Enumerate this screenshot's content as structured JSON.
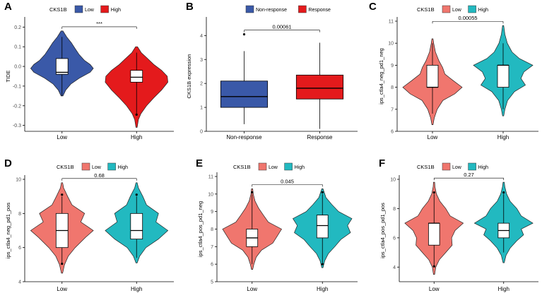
{
  "colors": {
    "low_red_fig_a": "#e41a1c",
    "high_blue_fig_a": "#3a59a8",
    "low_salmon": "#f0766e",
    "high_teal": "#22b9c0",
    "nonresponse_blue": "#3a59a8",
    "response_red": "#e41a1c"
  },
  "chart_data": [
    {
      "panel": "A",
      "type": "violin",
      "legend_title": "CKS1B",
      "legend": [
        "Low",
        "High"
      ],
      "ylabel": "TIDE",
      "ylim": [
        -0.33,
        0.23
      ],
      "yticks": [
        -0.3,
        -0.2,
        -0.1,
        0.0,
        0.1,
        0.2
      ],
      "ytick_labels": [
        "-0.3",
        "-0.2",
        "-0.1",
        "0.0",
        "0.1",
        "0.2"
      ],
      "categories": [
        "Low",
        "High"
      ],
      "significance": "***",
      "series": [
        {
          "name": "Low",
          "color": "#3a59a8",
          "range": [
            -0.15,
            0.18
          ],
          "density": [
            [
              -0.15,
              0.03
            ],
            [
              -0.12,
              0.12
            ],
            [
              -0.09,
              0.28
            ],
            [
              -0.06,
              0.55
            ],
            [
              -0.03,
              0.9
            ],
            [
              -0.01,
              1.0
            ],
            [
              0.01,
              0.9
            ],
            [
              0.03,
              0.72
            ],
            [
              0.06,
              0.55
            ],
            [
              0.09,
              0.42
            ],
            [
              0.12,
              0.3
            ],
            [
              0.15,
              0.15
            ],
            [
              0.18,
              0.03
            ]
          ],
          "box": {
            "q1": -0.04,
            "median": -0.03,
            "q3": 0.04,
            "whisker_low": -0.15,
            "whisker_high": 0.15
          }
        },
        {
          "name": "High",
          "color": "#e41a1c",
          "range": [
            -0.31,
            0.1
          ],
          "density": [
            [
              -0.31,
              0.02
            ],
            [
              -0.27,
              0.06
            ],
            [
              -0.24,
              0.14
            ],
            [
              -0.2,
              0.32
            ],
            [
              -0.16,
              0.55
            ],
            [
              -0.12,
              0.8
            ],
            [
              -0.08,
              1.0
            ],
            [
              -0.05,
              0.98
            ],
            [
              -0.02,
              0.8
            ],
            [
              0.01,
              0.55
            ],
            [
              0.04,
              0.35
            ],
            [
              0.07,
              0.15
            ],
            [
              0.1,
              0.03
            ]
          ],
          "box": {
            "q1": -0.08,
            "median": -0.055,
            "q3": -0.02,
            "whisker_low": -0.24,
            "whisker_high": 0.07
          },
          "outliers": [
            -0.245
          ]
        }
      ]
    },
    {
      "panel": "B",
      "type": "box",
      "legend_title": "",
      "legend": [
        "Non-response",
        "Response"
      ],
      "ylabel": "CKS1B expression",
      "ylim": [
        0,
        4.6
      ],
      "yticks": [
        0,
        1,
        2,
        3,
        4
      ],
      "ytick_labels": [
        "0",
        "1",
        "2",
        "3",
        "4"
      ],
      "categories": [
        "Non-response",
        "Response"
      ],
      "significance": "0.00061",
      "series": [
        {
          "name": "Non-response",
          "color": "#3a59a8",
          "box": {
            "q1": 1.0,
            "median": 1.45,
            "q3": 2.1,
            "whisker_low": 0.3,
            "whisker_high": 3.35
          },
          "outliers": [
            4.05
          ]
        },
        {
          "name": "Response",
          "color": "#e41a1c",
          "box": {
            "q1": 1.35,
            "median": 1.8,
            "q3": 2.35,
            "whisker_low": 0.1,
            "whisker_high": 3.7
          }
        }
      ]
    },
    {
      "panel": "C",
      "type": "violin",
      "legend_title": "CKS1B",
      "legend": [
        "Low",
        "High"
      ],
      "ylabel": "ips_ctla4_neg_pd1_neg",
      "ylim": [
        6,
        11
      ],
      "yticks": [
        6,
        7,
        8,
        9,
        10,
        11
      ],
      "ytick_labels": [
        "6",
        "7",
        "8",
        "9",
        "10",
        "11"
      ],
      "categories": [
        "Low",
        "High"
      ],
      "significance": "0.00055",
      "series": [
        {
          "name": "Low",
          "color": "#f0766e",
          "range": [
            6.3,
            10.2
          ],
          "density": [
            [
              6.3,
              0.02
            ],
            [
              6.6,
              0.06
            ],
            [
              7.0,
              0.16
            ],
            [
              7.4,
              0.35
            ],
            [
              7.7,
              0.75
            ],
            [
              8.0,
              1.0
            ],
            [
              8.3,
              0.7
            ],
            [
              8.6,
              0.42
            ],
            [
              8.9,
              0.34
            ],
            [
              9.2,
              0.22
            ],
            [
              9.6,
              0.1
            ],
            [
              10.0,
              0.04
            ],
            [
              10.2,
              0.02
            ]
          ],
          "box": {
            "q1": 8.0,
            "median": 8.0,
            "q3": 9.0,
            "whisker_low": 6.8,
            "whisker_high": 10.0
          }
        },
        {
          "name": "High",
          "color": "#22b9c0",
          "range": [
            6.7,
            10.8
          ],
          "density": [
            [
              6.7,
              0.02
            ],
            [
              7.0,
              0.06
            ],
            [
              7.4,
              0.15
            ],
            [
              7.8,
              0.38
            ],
            [
              8.1,
              0.75
            ],
            [
              8.4,
              0.6
            ],
            [
              8.7,
              0.7
            ],
            [
              9.0,
              1.0
            ],
            [
              9.3,
              0.55
            ],
            [
              9.6,
              0.3
            ],
            [
              10.0,
              0.14
            ],
            [
              10.4,
              0.06
            ],
            [
              10.8,
              0.02
            ]
          ],
          "box": {
            "q1": 8.0,
            "median": 9.0,
            "q3": 9.0,
            "whisker_low": 7.0,
            "whisker_high": 10.0
          }
        }
      ]
    },
    {
      "panel": "D",
      "type": "violin",
      "legend_title": "CKS1B",
      "legend": [
        "Low",
        "High"
      ],
      "ylabel": "ips_ctla4_neg_pd1_pos",
      "ylim": [
        4,
        10
      ],
      "yticks": [
        4,
        6,
        8,
        10
      ],
      "ytick_labels": [
        "4",
        "6",
        "8",
        "10"
      ],
      "categories": [
        "Low",
        "High"
      ],
      "significance": "0.68",
      "series": [
        {
          "name": "Low",
          "color": "#f0766e",
          "range": [
            4.5,
            9.8
          ],
          "density": [
            [
              4.5,
              0.02
            ],
            [
              5.0,
              0.08
            ],
            [
              5.5,
              0.2
            ],
            [
              6.0,
              0.42
            ],
            [
              6.6,
              0.75
            ],
            [
              7.0,
              1.0
            ],
            [
              7.5,
              0.6
            ],
            [
              8.0,
              0.72
            ],
            [
              8.5,
              0.32
            ],
            [
              9.0,
              0.18
            ],
            [
              9.5,
              0.05
            ],
            [
              9.8,
              0.02
            ]
          ],
          "box": {
            "q1": 6.0,
            "median": 7.0,
            "q3": 8.0,
            "whisker_low": 5.0,
            "whisker_high": 9.0
          },
          "outliers": [
            9.1,
            5.05
          ]
        },
        {
          "name": "High",
          "color": "#22b9c0",
          "range": [
            5.1,
            9.8
          ],
          "density": [
            [
              5.1,
              0.02
            ],
            [
              5.5,
              0.1
            ],
            [
              6.0,
              0.3
            ],
            [
              6.5,
              0.7
            ],
            [
              7.0,
              1.0
            ],
            [
              7.5,
              0.62
            ],
            [
              8.0,
              0.7
            ],
            [
              8.5,
              0.32
            ],
            [
              9.0,
              0.2
            ],
            [
              9.5,
              0.06
            ],
            [
              9.8,
              0.02
            ]
          ],
          "box": {
            "q1": 6.5,
            "median": 7.0,
            "q3": 8.0,
            "whisker_low": 5.4,
            "whisker_high": 9.0
          },
          "outliers": [
            9.1
          ]
        }
      ]
    },
    {
      "panel": "E",
      "type": "violin",
      "legend_title": "CKS1B",
      "legend": [
        "Low",
        "High"
      ],
      "ylabel": "ips_ctla4_pos_pd1_neg",
      "ylim": [
        5,
        11
      ],
      "yticks": [
        5,
        6,
        7,
        8,
        9,
        10,
        11
      ],
      "ytick_labels": [
        "5",
        "6",
        "7",
        "8",
        "9",
        "10",
        "11"
      ],
      "categories": [
        "Low",
        "High"
      ],
      "significance": "0.045",
      "series": [
        {
          "name": "Low",
          "color": "#f0766e",
          "range": [
            5.7,
            10.3
          ],
          "density": [
            [
              5.7,
              0.02
            ],
            [
              6.0,
              0.06
            ],
            [
              6.4,
              0.14
            ],
            [
              6.8,
              0.32
            ],
            [
              7.2,
              0.7
            ],
            [
              7.6,
              0.85
            ],
            [
              8.0,
              1.0
            ],
            [
              8.4,
              0.55
            ],
            [
              8.8,
              0.38
            ],
            [
              9.2,
              0.22
            ],
            [
              9.6,
              0.1
            ],
            [
              10.0,
              0.04
            ],
            [
              10.3,
              0.02
            ]
          ],
          "box": {
            "q1": 7.0,
            "median": 7.5,
            "q3": 8.0,
            "whisker_low": 6.0,
            "whisker_high": 10.0
          },
          "outliers": [
            10.1
          ]
        },
        {
          "name": "High",
          "color": "#22b9c0",
          "range": [
            5.8,
            10.3
          ],
          "density": [
            [
              5.8,
              0.02
            ],
            [
              6.2,
              0.08
            ],
            [
              6.6,
              0.2
            ],
            [
              7.0,
              0.42
            ],
            [
              7.4,
              0.62
            ],
            [
              7.8,
              0.95
            ],
            [
              8.2,
              0.85
            ],
            [
              8.6,
              1.0
            ],
            [
              9.0,
              0.55
            ],
            [
              9.4,
              0.32
            ],
            [
              9.8,
              0.12
            ],
            [
              10.3,
              0.02
            ]
          ],
          "box": {
            "q1": 7.5,
            "median": 8.2,
            "q3": 8.8,
            "whisker_low": 6.0,
            "whisker_high": 10.0
          },
          "outliers": [
            10.1,
            6.0
          ]
        }
      ]
    },
    {
      "panel": "F",
      "type": "violin",
      "legend_title": "CKS1B",
      "legend": [
        "Low",
        "High"
      ],
      "ylabel": "ips_ctla4_pos_pd1_pos",
      "ylim": [
        3,
        10
      ],
      "yticks": [
        4,
        6,
        8,
        10
      ],
      "ytick_labels": [
        "4",
        "6",
        "8",
        "10"
      ],
      "categories": [
        "Low",
        "High"
      ],
      "significance": "0.27",
      "series": [
        {
          "name": "Low",
          "color": "#f0766e",
          "range": [
            3.5,
            9.8
          ],
          "density": [
            [
              3.5,
              0.02
            ],
            [
              4.0,
              0.06
            ],
            [
              4.5,
              0.18
            ],
            [
              5.0,
              0.4
            ],
            [
              5.5,
              0.62
            ],
            [
              6.0,
              0.6
            ],
            [
              6.5,
              0.72
            ],
            [
              7.0,
              1.0
            ],
            [
              7.5,
              0.55
            ],
            [
              8.0,
              0.4
            ],
            [
              8.5,
              0.2
            ],
            [
              9.0,
              0.08
            ],
            [
              9.5,
              0.03
            ],
            [
              9.8,
              0.02
            ]
          ],
          "box": {
            "q1": 5.5,
            "median": 7.0,
            "q3": 7.0,
            "whisker_low": 4.0,
            "whisker_high": 9.0
          },
          "outliers": [
            9.1,
            4.05
          ]
        },
        {
          "name": "High",
          "color": "#22b9c0",
          "range": [
            4.3,
            9.8
          ],
          "density": [
            [
              4.3,
              0.02
            ],
            [
              4.8,
              0.08
            ],
            [
              5.3,
              0.22
            ],
            [
              5.8,
              0.45
            ],
            [
              6.2,
              0.68
            ],
            [
              6.6,
              0.6
            ],
            [
              7.0,
              1.0
            ],
            [
              7.5,
              0.6
            ],
            [
              8.0,
              0.45
            ],
            [
              8.5,
              0.22
            ],
            [
              9.0,
              0.1
            ],
            [
              9.5,
              0.04
            ],
            [
              9.8,
              0.02
            ]
          ],
          "box": {
            "q1": 6.0,
            "median": 6.5,
            "q3": 7.0,
            "whisker_low": 5.0,
            "whisker_high": 9.0
          },
          "outliers": [
            9.1
          ]
        }
      ]
    }
  ]
}
